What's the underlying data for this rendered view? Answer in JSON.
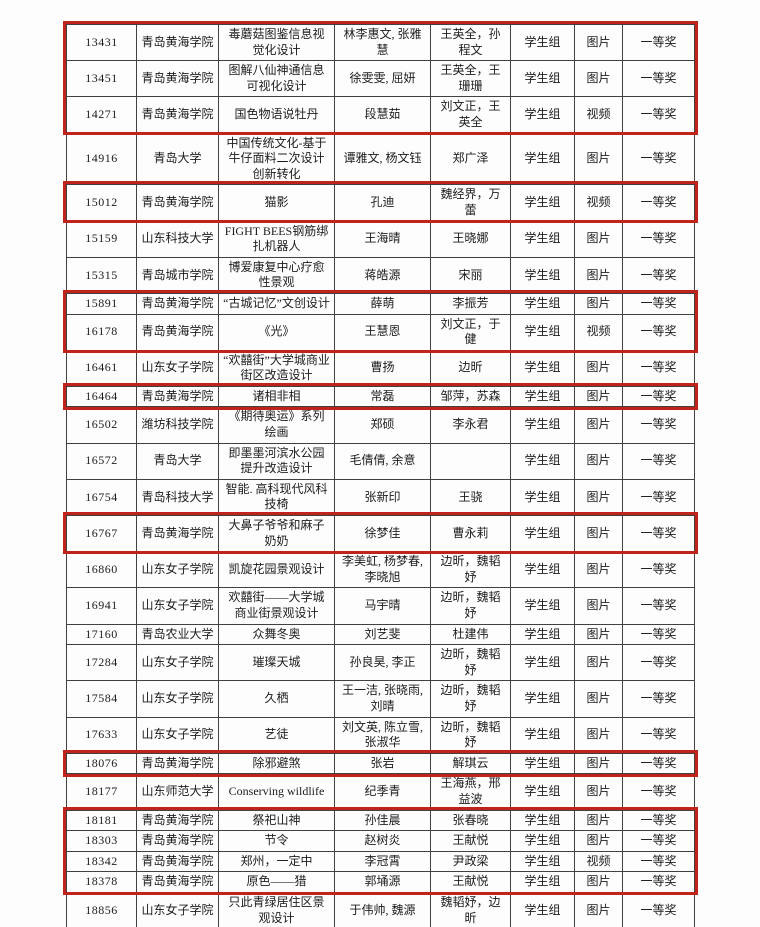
{
  "table": {
    "group_label": "学生组",
    "award_label": "一等奖",
    "rows": [
      {
        "id": "13431",
        "school": "青岛黄海学院",
        "title": "毒蘑菇图鉴信息视觉化设计",
        "authors": "林李惠文, 张雅慧",
        "advisors": "王英全，孙程文",
        "group": "学生组",
        "type": "图片",
        "award": "一等奖"
      },
      {
        "id": "13451",
        "school": "青岛黄海学院",
        "title": "图解八仙神通信息可视化设计",
        "authors": "徐雯雯, 屈妍",
        "advisors": "王英全，王珊珊",
        "group": "学生组",
        "type": "图片",
        "award": "一等奖"
      },
      {
        "id": "14271",
        "school": "青岛黄海学院",
        "title": "国色物语说牡丹",
        "authors": "段慧茹",
        "advisors": "刘文正，王英全",
        "group": "学生组",
        "type": "视频",
        "award": "一等奖"
      },
      {
        "id": "14916",
        "school": "青岛大学",
        "title": "中国传统文化-基于牛仔面料二次设计创新转化",
        "authors": "谭雅文, 杨文钰",
        "advisors": "郑广泽",
        "group": "学生组",
        "type": "图片",
        "award": "一等奖"
      },
      {
        "id": "15012",
        "school": "青岛黄海学院",
        "title": "猫影",
        "authors": "孔迪",
        "advisors": "魏经界，万蕾",
        "group": "学生组",
        "type": "视频",
        "award": "一等奖"
      },
      {
        "id": "15159",
        "school": "山东科技大学",
        "title": "FIGHT BEES钢筋绑扎机器人",
        "authors": "王海晴",
        "advisors": "王晓娜",
        "group": "学生组",
        "type": "图片",
        "award": "一等奖"
      },
      {
        "id": "15315",
        "school": "青岛城市学院",
        "title": "博爱康复中心疗愈性景观",
        "authors": "蒋皓源",
        "advisors": "宋丽",
        "group": "学生组",
        "type": "图片",
        "award": "一等奖"
      },
      {
        "id": "15891",
        "school": "青岛黄海学院",
        "title": "“古城记忆”文创设计",
        "authors": "薛萌",
        "advisors": "李振芳",
        "group": "学生组",
        "type": "图片",
        "award": "一等奖"
      },
      {
        "id": "16178",
        "school": "青岛黄海学院",
        "title": "《光》",
        "authors": "王慧恩",
        "advisors": "刘文正，于健",
        "group": "学生组",
        "type": "视频",
        "award": "一等奖"
      },
      {
        "id": "16461",
        "school": "山东女子学院",
        "title": "“欢囍街”大学城商业街区改造设计",
        "authors": "曹扬",
        "advisors": "边昕",
        "group": "学生组",
        "type": "图片",
        "award": "一等奖"
      },
      {
        "id": "16464",
        "school": "青岛黄海学院",
        "title": "诸相非相",
        "authors": "常磊",
        "advisors": "邹萍，苏森",
        "group": "学生组",
        "type": "图片",
        "award": "一等奖"
      },
      {
        "id": "16502",
        "school": "潍坊科技学院",
        "title": "《期待奥运》系列绘画",
        "authors": "郑硕",
        "advisors": "李永君",
        "group": "学生组",
        "type": "图片",
        "award": "一等奖"
      },
      {
        "id": "16572",
        "school": "青岛大学",
        "title": "即墨墨河滨水公园提升改造设计",
        "authors": "毛倩倩, 余意",
        "advisors": "",
        "group": "学生组",
        "type": "图片",
        "award": "一等奖"
      },
      {
        "id": "16754",
        "school": "青岛科技大学",
        "title": "智能. 高科现代风科技椅",
        "authors": "张新印",
        "advisors": "王骁",
        "group": "学生组",
        "type": "图片",
        "award": "一等奖"
      },
      {
        "id": "16767",
        "school": "青岛黄海学院",
        "title": "大鼻子爷爷和麻子奶奶",
        "authors": "徐梦佳",
        "advisors": "曹永莉",
        "group": "学生组",
        "type": "图片",
        "award": "一等奖"
      },
      {
        "id": "16860",
        "school": "山东女子学院",
        "title": "凯旋花园景观设计",
        "authors": "李美虹, 杨梦春, 李晓旭",
        "advisors": "边昕，魏韬妤",
        "group": "学生组",
        "type": "图片",
        "award": "一等奖"
      },
      {
        "id": "16941",
        "school": "山东女子学院",
        "title": "欢囍街——大学城商业街景观设计",
        "authors": "马宇晴",
        "advisors": "边昕，魏韬妤",
        "group": "学生组",
        "type": "图片",
        "award": "一等奖"
      },
      {
        "id": "17160",
        "school": "青岛农业大学",
        "title": "众舞冬奥",
        "authors": "刘艺斐",
        "advisors": "杜建伟",
        "group": "学生组",
        "type": "图片",
        "award": "一等奖"
      },
      {
        "id": "17284",
        "school": "山东女子学院",
        "title": "璀璨天城",
        "authors": "孙良昊, 李正",
        "advisors": "边昕，魏韬妤",
        "group": "学生组",
        "type": "图片",
        "award": "一等奖"
      },
      {
        "id": "17584",
        "school": "山东女子学院",
        "title": "久栖",
        "authors": "王一洁, 张晓雨, 刘晴",
        "advisors": "边昕，魏韬妤",
        "group": "学生组",
        "type": "图片",
        "award": "一等奖"
      },
      {
        "id": "17633",
        "school": "山东女子学院",
        "title": "艺徒",
        "authors": "刘文英, 陈立雪, 张淑华",
        "advisors": "边昕，魏韬妤",
        "group": "学生组",
        "type": "图片",
        "award": "一等奖"
      },
      {
        "id": "18076",
        "school": "青岛黄海学院",
        "title": "除邪避煞",
        "authors": "张岩",
        "advisors": "解琪云",
        "group": "学生组",
        "type": "图片",
        "award": "一等奖"
      },
      {
        "id": "18177",
        "school": "山东师范大学",
        "title": "Conserving wildlife",
        "authors": "纪季青",
        "advisors": "王海燕，邢益波",
        "group": "学生组",
        "type": "图片",
        "award": "一等奖"
      },
      {
        "id": "18181",
        "school": "青岛黄海学院",
        "title": "祭祀山神",
        "authors": "孙佳晨",
        "advisors": "张春晓",
        "group": "学生组",
        "type": "图片",
        "award": "一等奖"
      },
      {
        "id": "18303",
        "school": "青岛黄海学院",
        "title": "节令",
        "authors": "赵树炎",
        "advisors": "王献悦",
        "group": "学生组",
        "type": "图片",
        "award": "一等奖"
      },
      {
        "id": "18342",
        "school": "青岛黄海学院",
        "title": "郑州，一定中",
        "authors": "李冠霄",
        "advisors": "尹政梁",
        "group": "学生组",
        "type": "视频",
        "award": "一等奖"
      },
      {
        "id": "18378",
        "school": "青岛黄海学院",
        "title": "原色——猎",
        "authors": "郭埇源",
        "advisors": "王献悦",
        "group": "学生组",
        "type": "图片",
        "award": "一等奖"
      },
      {
        "id": "18856",
        "school": "山东女子学院",
        "title": "只此青绿居住区景观设计",
        "authors": "于伟帅, 魏源",
        "advisors": "魏韬妤，边昕",
        "group": "学生组",
        "type": "图片",
        "award": "一等奖"
      }
    ],
    "highlight_groups": [
      [
        0,
        2
      ],
      [
        4,
        4
      ],
      [
        7,
        8
      ],
      [
        10,
        10
      ],
      [
        14,
        14
      ],
      [
        21,
        21
      ],
      [
        23,
        26
      ]
    ]
  },
  "colors": {
    "highlight_border": "#c0231a",
    "table_border": "#414141",
    "text": "#1c1c1c",
    "background": "#fdfdfd"
  }
}
